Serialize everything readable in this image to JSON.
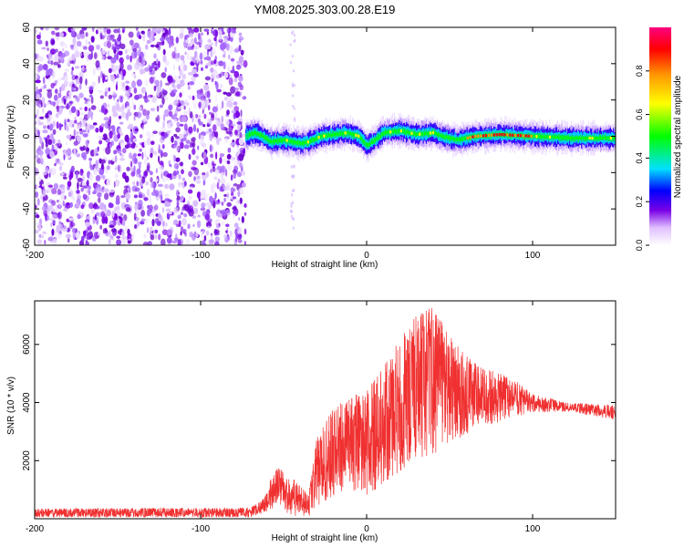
{
  "title": "YM08.2025.303.00.28.E19",
  "chart_data": [
    {
      "type": "heatmap",
      "xlabel": "Height of straight line (km)",
      "ylabel": "Frequency (Hz)",
      "xlim": [
        -200,
        150
      ],
      "ylim": [
        -60,
        60
      ],
      "x_ticks": [
        -200,
        -100,
        0,
        100
      ],
      "y_ticks": [
        -60,
        -40,
        -20,
        0,
        20,
        40,
        60
      ],
      "noise_region_x": [
        -200,
        -73
      ],
      "ridge": [
        {
          "x": -73,
          "y": 0
        },
        {
          "x": -68,
          "y": 2
        },
        {
          "x": -63,
          "y": 0
        },
        {
          "x": -58,
          "y": -3
        },
        {
          "x": -50,
          "y": -2
        },
        {
          "x": -40,
          "y": -4
        },
        {
          "x": -35,
          "y": -3
        },
        {
          "x": -28,
          "y": 0
        },
        {
          "x": -20,
          "y": 1
        },
        {
          "x": -12,
          "y": 2
        },
        {
          "x": -5,
          "y": 0
        },
        {
          "x": 0,
          "y": -5
        },
        {
          "x": 5,
          "y": -2
        },
        {
          "x": 10,
          "y": 2
        },
        {
          "x": 20,
          "y": 3
        },
        {
          "x": 30,
          "y": 1
        },
        {
          "x": 40,
          "y": 2
        },
        {
          "x": 45,
          "y": 0
        },
        {
          "x": 55,
          "y": -2
        },
        {
          "x": 65,
          "y": 0
        },
        {
          "x": 80,
          "y": 1
        },
        {
          "x": 100,
          "y": 0
        },
        {
          "x": 125,
          "y": -1
        },
        {
          "x": 150,
          "y": -1
        }
      ],
      "peak_region_x": [
        60,
        100
      ],
      "colorbar": {
        "label": "Normalized spectral amplitude",
        "range": [
          0,
          1
        ],
        "ticks": [
          0.0,
          0.2,
          0.4,
          0.6,
          0.8
        ],
        "colors": [
          "#ffffff",
          "#e0c0ff",
          "#7a00e6",
          "#0000ff",
          "#00e0ff",
          "#00ff00",
          "#ffff00",
          "#ff9900",
          "#ff0000",
          "#ff0080"
        ]
      }
    },
    {
      "type": "line",
      "xlabel": "Height of straight line (km)",
      "ylabel": "SNR (10 * v/v)",
      "xlim": [
        -200,
        150
      ],
      "ylim": [
        0,
        7500
      ],
      "x_ticks": [
        -200,
        -100,
        0,
        100
      ],
      "y_ticks": [
        2000,
        4000,
        6000
      ],
      "color": "#f03030",
      "envelope": [
        {
          "x": -200,
          "lo": 50,
          "hi": 350
        },
        {
          "x": -70,
          "lo": 50,
          "hi": 380
        },
        {
          "x": -62,
          "lo": 200,
          "hi": 700
        },
        {
          "x": -55,
          "lo": 400,
          "hi": 1800
        },
        {
          "x": -45,
          "lo": 100,
          "hi": 1500
        },
        {
          "x": -35,
          "lo": 50,
          "hi": 800
        },
        {
          "x": -30,
          "lo": 400,
          "hi": 2800
        },
        {
          "x": -20,
          "lo": 800,
          "hi": 3800
        },
        {
          "x": -10,
          "lo": 1000,
          "hi": 4200
        },
        {
          "x": 0,
          "lo": 800,
          "hi": 4400
        },
        {
          "x": 10,
          "lo": 1200,
          "hi": 5200
        },
        {
          "x": 20,
          "lo": 1600,
          "hi": 6200
        },
        {
          "x": 30,
          "lo": 2000,
          "hi": 7000
        },
        {
          "x": 40,
          "lo": 2200,
          "hi": 7300
        },
        {
          "x": 50,
          "lo": 2600,
          "hi": 6300
        },
        {
          "x": 60,
          "lo": 2900,
          "hi": 5600
        },
        {
          "x": 70,
          "lo": 3200,
          "hi": 5200
        },
        {
          "x": 80,
          "lo": 3300,
          "hi": 5000
        },
        {
          "x": 90,
          "lo": 3500,
          "hi": 4800
        },
        {
          "x": 100,
          "lo": 3650,
          "hi": 4300
        },
        {
          "x": 120,
          "lo": 3700,
          "hi": 4000
        },
        {
          "x": 150,
          "lo": 3400,
          "hi": 3900
        }
      ]
    }
  ]
}
